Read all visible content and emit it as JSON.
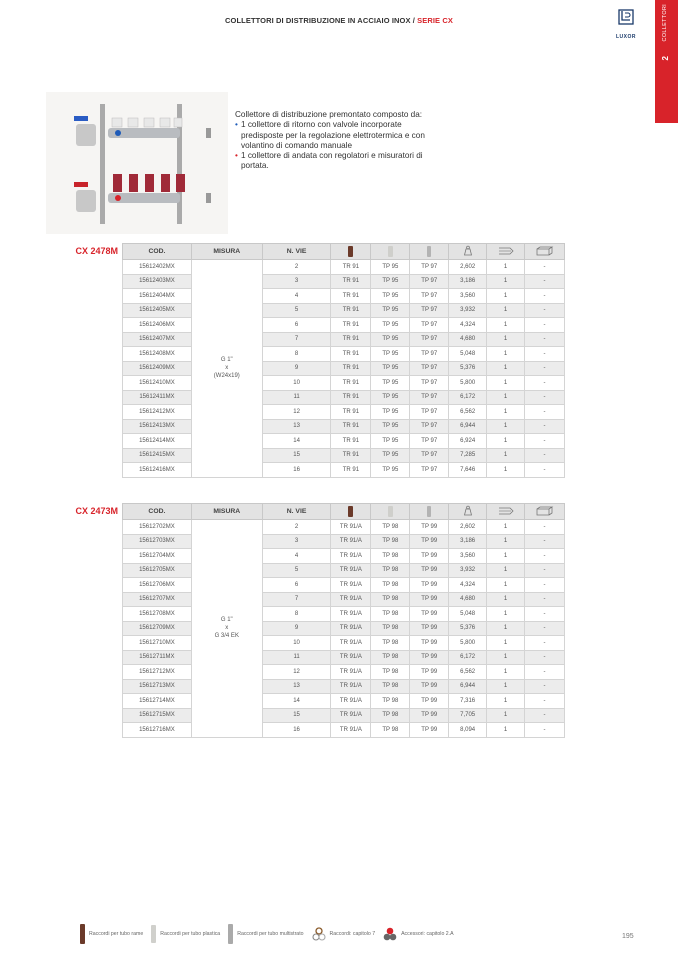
{
  "header": {
    "title": "COLLETTORI DI DISTRIBUZIONE IN ACCIAIO INOX / ",
    "series": "SERIE CX",
    "logo": "LUXOR"
  },
  "side_tab": {
    "number": "2",
    "label": "COLLETTORI",
    "color": "#d8232a"
  },
  "description": {
    "intro": "Collettore di distribuzione premontato composto da:",
    "bullets": [
      "1 collettore di ritorno con valvole incorporate predisposte per la regolazione elettrotermica e con volantino di comando manuale",
      "1 collettore di andata con regolatori e misuratori di portata."
    ]
  },
  "columns": {
    "cod": "COD.",
    "misura": "MISURA",
    "nvie": "N. VIE",
    "icons": [
      "copper-pipe-icon",
      "plastic-pipe-icon",
      "multilayer-pipe-icon",
      "weight-icon",
      "box-quantity-icon",
      "carton-icon"
    ]
  },
  "tables": [
    {
      "series": "CX 2478M",
      "misura": [
        "G 1\"",
        "x",
        "(W24x19)"
      ],
      "rows": [
        [
          "15612402MX",
          "2",
          "TR 91",
          "TP 95",
          "TP 97",
          "2,602",
          "1",
          "-"
        ],
        [
          "15612403MX",
          "3",
          "TR 91",
          "TP 95",
          "TP 97",
          "3,186",
          "1",
          "-"
        ],
        [
          "15612404MX",
          "4",
          "TR 91",
          "TP 95",
          "TP 97",
          "3,560",
          "1",
          "-"
        ],
        [
          "15612405MX",
          "5",
          "TR 91",
          "TP 95",
          "TP 97",
          "3,932",
          "1",
          "-"
        ],
        [
          "15612406MX",
          "6",
          "TR 91",
          "TP 95",
          "TP 97",
          "4,324",
          "1",
          "-"
        ],
        [
          "15612407MX",
          "7",
          "TR 91",
          "TP 95",
          "TP 97",
          "4,680",
          "1",
          "-"
        ],
        [
          "15612408MX",
          "8",
          "TR 91",
          "TP 95",
          "TP 97",
          "5,048",
          "1",
          "-"
        ],
        [
          "15612409MX",
          "9",
          "TR 91",
          "TP 95",
          "TP 97",
          "5,376",
          "1",
          "-"
        ],
        [
          "15612410MX",
          "10",
          "TR 91",
          "TP 95",
          "TP 97",
          "5,800",
          "1",
          "-"
        ],
        [
          "15612411MX",
          "11",
          "TR 91",
          "TP 95",
          "TP 97",
          "6,172",
          "1",
          "-"
        ],
        [
          "15612412MX",
          "12",
          "TR 91",
          "TP 95",
          "TP 97",
          "6,562",
          "1",
          "-"
        ],
        [
          "15612413MX",
          "13",
          "TR 91",
          "TP 95",
          "TP 97",
          "6,944",
          "1",
          "-"
        ],
        [
          "15612414MX",
          "14",
          "TR 91",
          "TP 95",
          "TP 97",
          "6,924",
          "1",
          "-"
        ],
        [
          "15612415MX",
          "15",
          "TR 91",
          "TP 95",
          "TP 97",
          "7,285",
          "1",
          "-"
        ],
        [
          "15612416MX",
          "16",
          "TR 91",
          "TP 95",
          "TP 97",
          "7,646",
          "1",
          "-"
        ]
      ]
    },
    {
      "series": "CX 2473M",
      "misura": [
        "G 1\"",
        "x",
        "G 3/4 EK"
      ],
      "rows": [
        [
          "15612702MX",
          "2",
          "TR 91/A",
          "TP 98",
          "TP 99",
          "2,602",
          "1",
          "-"
        ],
        [
          "15612703MX",
          "3",
          "TR 91/A",
          "TP 98",
          "TP 99",
          "3,186",
          "1",
          "-"
        ],
        [
          "15612704MX",
          "4",
          "TR 91/A",
          "TP 98",
          "TP 99",
          "3,560",
          "1",
          "-"
        ],
        [
          "15612705MX",
          "5",
          "TR 91/A",
          "TP 98",
          "TP 99",
          "3,932",
          "1",
          "-"
        ],
        [
          "15612706MX",
          "6",
          "TR 91/A",
          "TP 98",
          "TP 99",
          "4,324",
          "1",
          "-"
        ],
        [
          "15612707MX",
          "7",
          "TR 91/A",
          "TP 98",
          "TP 99",
          "4,680",
          "1",
          "-"
        ],
        [
          "15612708MX",
          "8",
          "TR 91/A",
          "TP 98",
          "TP 99",
          "5,048",
          "1",
          "-"
        ],
        [
          "15612709MX",
          "9",
          "TR 91/A",
          "TP 98",
          "TP 99",
          "5,376",
          "1",
          "-"
        ],
        [
          "15612710MX",
          "10",
          "TR 91/A",
          "TP 98",
          "TP 99",
          "5,800",
          "1",
          "-"
        ],
        [
          "15612711MX",
          "11",
          "TR 91/A",
          "TP 98",
          "TP 99",
          "6,172",
          "1",
          "-"
        ],
        [
          "15612712MX",
          "12",
          "TR 91/A",
          "TP 98",
          "TP 99",
          "6,562",
          "1",
          "-"
        ],
        [
          "15612713MX",
          "13",
          "TR 91/A",
          "TP 98",
          "TP 99",
          "6,944",
          "1",
          "-"
        ],
        [
          "15612714MX",
          "14",
          "TR 91/A",
          "TP 98",
          "TP 99",
          "7,316",
          "1",
          "-"
        ],
        [
          "15612715MX",
          "15",
          "TR 91/A",
          "TP 98",
          "TP 99",
          "7,705",
          "1",
          "-"
        ],
        [
          "15612716MX",
          "16",
          "TR 91/A",
          "TP 98",
          "TP 99",
          "8,094",
          "1",
          "-"
        ]
      ]
    }
  ],
  "legend": [
    {
      "icon": "copper-pipe-icon",
      "label": "Raccordi per tubo rame"
    },
    {
      "icon": "plastic-pipe-icon",
      "label": "Raccordi per tubo plastica"
    },
    {
      "icon": "multilayer-pipe-icon",
      "label": "Raccordi per tubo multistrato"
    },
    {
      "icon": "fittings-rings-icon",
      "label": "Raccordi: capitolo 7"
    },
    {
      "icon": "accessories-icon",
      "label": "Accessori: capitolo 2.A"
    }
  ],
  "page_number": "195"
}
